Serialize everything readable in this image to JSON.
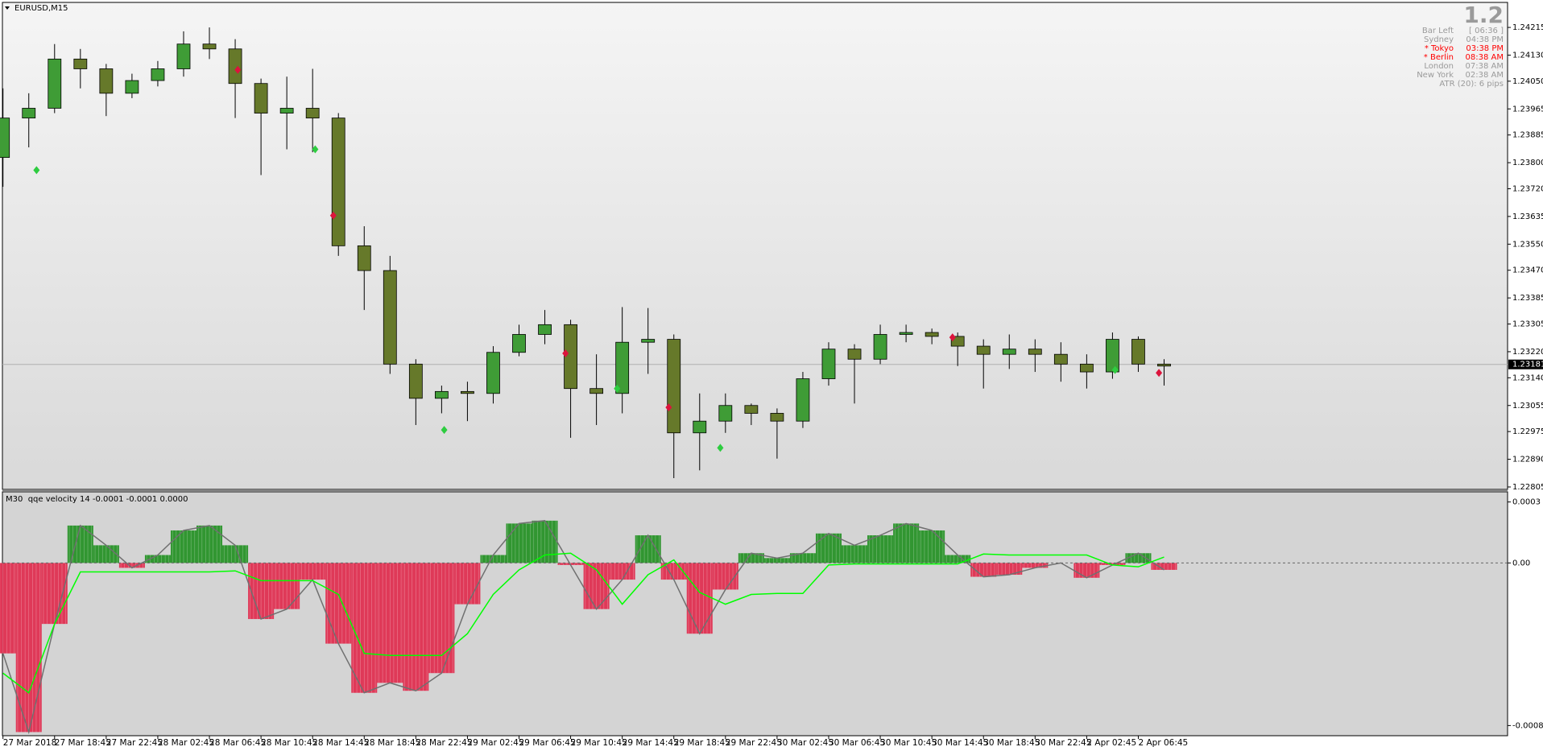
{
  "chart_data": [
    {
      "type": "candlestick",
      "title": "EURUSD,M15",
      "open": [
        1.23816,
        1.23937,
        1.23967,
        1.24118,
        1.24088,
        1.24013,
        1.24052,
        1.24088,
        1.24164,
        1.24149,
        1.24043,
        1.23952,
        1.23967,
        1.23937,
        1.23545,
        1.23469,
        1.23182,
        1.23077,
        1.23098,
        1.23092,
        1.23218,
        1.23273,
        1.23303,
        1.23107,
        1.23092,
        1.23249,
        1.23258,
        1.22971,
        1.23007,
        1.23055,
        1.23031,
        1.23007,
        1.23137,
        1.23228,
        1.23197,
        1.23273,
        1.23279,
        1.23267,
        1.23237,
        1.23212,
        1.23228,
        1.23212,
        1.23182,
        1.23158,
        1.23258,
        1.23182
      ],
      "high": [
        1.24028,
        1.24013,
        1.24164,
        1.24149,
        1.24103,
        1.24073,
        1.24112,
        1.24203,
        1.24215,
        1.24179,
        1.24058,
        1.24064,
        1.24088,
        1.23952,
        1.23605,
        1.23514,
        1.23197,
        1.23116,
        1.23128,
        1.23237,
        1.23303,
        1.23348,
        1.23318,
        1.23212,
        1.23357,
        1.23354,
        1.23273,
        1.23092,
        1.23092,
        1.23061,
        1.23046,
        1.23158,
        1.23249,
        1.23243,
        1.23303,
        1.23303,
        1.23291,
        1.23279,
        1.23258,
        1.23273,
        1.23258,
        1.23249,
        1.23212,
        1.23279,
        1.23267,
        1.23197
      ],
      "low": [
        1.23726,
        1.23847,
        1.23952,
        1.24028,
        1.23943,
        1.23998,
        1.24034,
        1.24064,
        1.24118,
        1.23937,
        1.23762,
        1.23841,
        1.23832,
        1.23514,
        1.23348,
        1.23152,
        1.22995,
        1.23031,
        1.23007,
        1.23061,
        1.23206,
        1.23243,
        1.22956,
        1.22995,
        1.23031,
        1.23152,
        1.22832,
        1.22856,
        1.22971,
        1.22995,
        1.22892,
        1.22986,
        1.23116,
        1.23061,
        1.23182,
        1.23249,
        1.23243,
        1.23176,
        1.23107,
        1.23167,
        1.23158,
        1.23128,
        1.23107,
        1.23137,
        1.23158,
        1.23116
      ],
      "close": [
        1.23937,
        1.23967,
        1.24118,
        1.24088,
        1.24013,
        1.24052,
        1.24088,
        1.24164,
        1.24149,
        1.24043,
        1.23952,
        1.23967,
        1.23937,
        1.23545,
        1.23469,
        1.23182,
        1.23077,
        1.23098,
        1.23092,
        1.23218,
        1.23273,
        1.23303,
        1.23107,
        1.23092,
        1.23249,
        1.23258,
        1.22971,
        1.23007,
        1.23055,
        1.23031,
        1.23007,
        1.23137,
        1.23228,
        1.23197,
        1.23273,
        1.23279,
        1.23267,
        1.23237,
        1.23212,
        1.23228,
        1.23212,
        1.23182,
        1.23158,
        1.23258,
        1.23182,
        1.23176
      ],
      "up_color": "#3f9c36",
      "down_color": "#66792a",
      "buy": {
        "color": "#2ecc40",
        "x": [
          1.3,
          12.1,
          17.1,
          23.8,
          27.8,
          43.1
        ],
        "values": [
          1.23777,
          1.23841,
          1.2298,
          1.23107,
          1.22925,
          1.23164
        ]
      },
      "sell": {
        "color": "#dc143c",
        "x": [
          9.1,
          12.8,
          21.8,
          25.8,
          36.8,
          44.8
        ],
        "values": [
          1.24085,
          1.23638,
          1.23215,
          1.23049,
          1.23264,
          1.23155
        ]
      },
      "last_price": 1.23181,
      "ylim": [
        1.228,
        1.2429
      ],
      "yticks": [
        1.24215,
        {
          "value": 1.2413,
          "label": "1.24130"
        },
        {
          "value": 1.2405,
          "label": "1.24050"
        },
        1.23965,
        1.23885,
        {
          "value": 1.238,
          "label": "1.23800"
        },
        {
          "value": 1.2372,
          "label": "1.23720"
        },
        1.23635,
        {
          "value": 1.2355,
          "label": "1.23550"
        },
        {
          "value": 1.2347,
          "label": "1.23470"
        },
        1.23385,
        1.23305,
        {
          "value": 1.2322,
          "label": "1.23220"
        },
        {
          "value": 1.2314,
          "label": "1.23140"
        },
        1.23055,
        1.22975,
        {
          "value": 1.2289,
          "label": "1.22890"
        },
        1.22805
      ],
      "categories": [
        "27 Mar 2018",
        "27 Mar 18:45",
        "27 Mar 22:45",
        "28 Mar 02:45",
        "28 Mar 06:45",
        "28 Mar 10:45",
        "28 Mar 14:45",
        "28 Mar 18:45",
        "28 Mar 22:45",
        "29 Mar 02:45",
        "29 Mar 06:45",
        "29 Mar 10:45",
        "29 Mar 14:45",
        "29 Mar 18:45",
        "29 Mar 22:45",
        "30 Mar 02:45",
        "30 Mar 06:45",
        "30 Mar 10:45",
        "30 Mar 14:45",
        "30 Mar 18:45",
        "30 Mar 22:45",
        "2 Apr 02:45",
        "2 Apr 06:45"
      ],
      "info": {
        "big": "1.2",
        "rows": [
          {
            "label": "Bar Left",
            "value": "[ 06:36 ]",
            "color": "#9a9a9a"
          },
          {
            "label": "Sydney",
            "value": "04:38 PM",
            "color": "#9a9a9a"
          },
          {
            "label": "* Tokyo",
            "value": "03:38 PM",
            "color": "#ff0000"
          },
          {
            "label": "* Berlin",
            "value": "08:38 AM",
            "color": "#ff0000"
          },
          {
            "label": "London",
            "value": "07:38 AM",
            "color": "#9a9a9a"
          },
          {
            "label": "New York",
            "value": "02:38 AM",
            "color": "#9a9a9a"
          }
        ],
        "atr": "ATR (20): 6 pips"
      }
    },
    {
      "type": "bar",
      "title": "M30  qqe velocity 14 -0.0001 -0.0001 0.0000",
      "values": [
        -0.000445,
        -0.000832,
        -0.0003,
        0.000184,
        8.7e-05,
        -2.4e-05,
        3.9e-05,
        0.00016,
        0.000184,
        8.7e-05,
        -0.000276,
        -0.000227,
        -8.2e-05,
        -0.000397,
        -0.000639,
        -0.00059,
        -0.000629,
        -0.000542,
        -0.000203,
        3.9e-05,
        0.000194,
        0.000208,
        -1e-05,
        -0.000227,
        -8.2e-05,
        0.000136,
        -8.2e-05,
        -0.000348,
        -0.000131,
        4.8e-05,
        2.4e-05,
        4.8e-05,
        0.000145,
        8.7e-05,
        0.000136,
        0.000194,
        0.00016,
        3.9e-05,
        -6.8e-05,
        -5.8e-05,
        -2.4e-05,
        0,
        -7.3e-05,
        -1e-05,
        4.8e-05,
        -3.4e-05
      ],
      "positive_color": "#1f8f1f",
      "negative_color": "#e0284a",
      "line": {
        "color": "#00ff00",
        "values": [
          -0.000542,
          -0.000639,
          -0.0003,
          -4.4e-05,
          -4.4e-05,
          -4.4e-05,
          -4.4e-05,
          -4.4e-05,
          -4.4e-05,
          -3.9e-05,
          -8.7e-05,
          -8.7e-05,
          -8.7e-05,
          -0.000155,
          -0.000445,
          -0.000455,
          -0.000455,
          -0.000455,
          -0.000348,
          -0.000155,
          -3.4e-05,
          3.9e-05,
          4.8e-05,
          -3.4e-05,
          -0.000203,
          -5.8e-05,
          1.5e-05,
          -0.000145,
          -0.000203,
          -0.000155,
          -0.00015,
          -0.00015,
          -1e-05,
          -5e-06,
          -5e-06,
          -5e-06,
          -5e-06,
          -5e-06,
          4.4e-05,
          3.9e-05,
          3.9e-05,
          3.9e-05,
          3.9e-05,
          -1e-05,
          -1.9e-05,
          2.9e-05
        ]
      },
      "ylim": [
        -0.00085,
        0.00035
      ],
      "yticks": [
        0.0003,
        {
          "value": 0,
          "label": "0.00"
        },
        -0.0008
      ]
    }
  ]
}
